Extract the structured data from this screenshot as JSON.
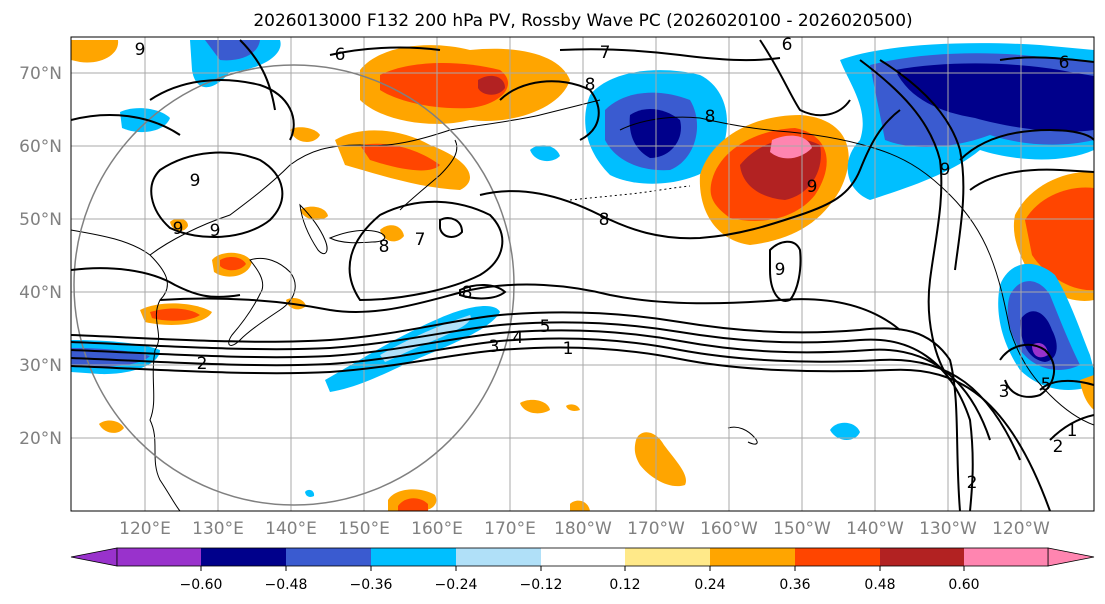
{
  "title": "2026013000 F132 200 hPa PV, Rossby Wave PC (2026020100 - 2026020500)",
  "map": {
    "lat_labels": [
      "70°N",
      "60°N",
      "50°N",
      "40°N",
      "30°N",
      "20°N"
    ],
    "lon_labels": [
      "120°E",
      "130°E",
      "140°E",
      "150°E",
      "160°E",
      "170°E",
      "180°W",
      "170°W",
      "160°W",
      "150°W",
      "140°W",
      "130°W",
      "120°W"
    ],
    "contour_labels": [
      "6",
      "7",
      "6",
      "6",
      "9",
      "8",
      "9",
      "9",
      "9",
      "9",
      "9",
      "8",
      "7",
      "8",
      "9",
      "8",
      "8",
      "3",
      "4",
      "5",
      "1",
      "2",
      "3",
      "5",
      "2",
      "1",
      "2"
    ],
    "colors": {
      "purple": "#9932cc",
      "navy": "#00008b",
      "royal": "#3a5bd0",
      "sky": "#00bfff",
      "light": "#b0e0f8",
      "white": "#ffffff",
      "yellow": "#ffe989",
      "orange": "#ffa500",
      "red": "#ff4500",
      "darkred": "#b22222",
      "pink": "#ff85b0",
      "grid": "#a9a9a9"
    }
  },
  "colorbar": {
    "ticks": [
      "−0.60",
      "−0.48",
      "−0.36",
      "−0.24",
      "−0.12",
      "0.12",
      "0.24",
      "0.36",
      "0.48",
      "0.60"
    ],
    "bins": [
      "#9932cc",
      "#00008b",
      "#3a5bd0",
      "#00bfff",
      "#b0e0f8",
      "#ffffff",
      "#ffe989",
      "#ffa500",
      "#ff4500",
      "#b22222",
      "#ff85b0"
    ]
  }
}
